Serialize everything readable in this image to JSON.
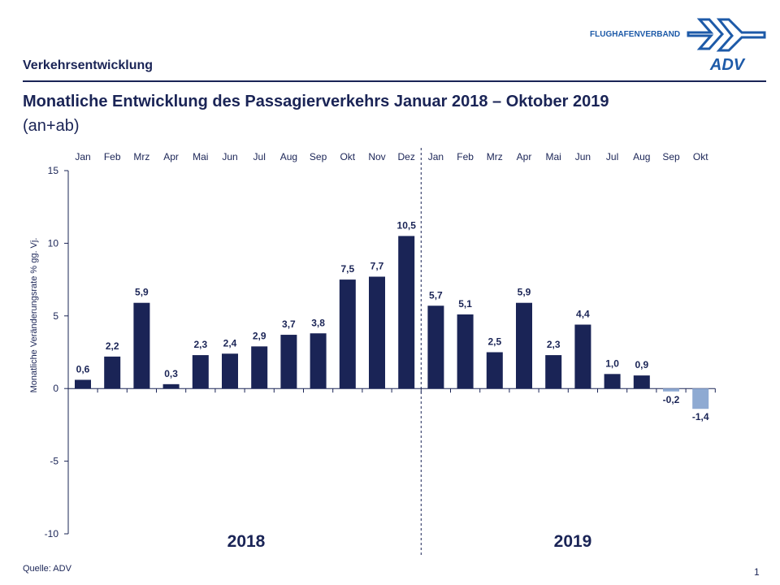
{
  "header": {
    "section_title": "Verkehrsentwicklung",
    "title": "Monatliche Entwicklung des Passagierverkehrs  Januar 2018 – Oktober 2019",
    "subtitle": "(an+ab)",
    "logo_text": "FLUGHAFENVERBAND",
    "logo_mark": "ADV"
  },
  "footer": {
    "source": "Quelle: ADV",
    "page_number": "1"
  },
  "chart_data": {
    "type": "bar",
    "title": "Monatliche Entwicklung des Passagierverkehrs  Januar 2018 – Oktober 2019",
    "ylabel": "Monatliche Veränderungsrate % gg. Vj.",
    "ylim": [
      -10,
      15
    ],
    "yticks": [
      "-10",
      "-5",
      "0",
      "5",
      "10",
      "15"
    ],
    "ytick_values": [
      -10,
      -5,
      0,
      5,
      10,
      15
    ],
    "grid": false,
    "categories": [
      "Jan",
      "Feb",
      "Mrz",
      "Apr",
      "Mai",
      "Jun",
      "Jul",
      "Aug",
      "Sep",
      "Okt",
      "Nov",
      "Dez",
      "Jan",
      "Feb",
      "Mrz",
      "Apr",
      "Mai",
      "Jun",
      "Jul",
      "Aug",
      "Sep",
      "Okt"
    ],
    "values": [
      0.6,
      2.2,
      5.9,
      0.3,
      2.3,
      2.4,
      2.9,
      3.7,
      3.8,
      7.5,
      7.7,
      10.5,
      5.7,
      5.1,
      2.5,
      5.9,
      2.3,
      4.4,
      1.0,
      0.9,
      -0.2,
      -1.4
    ],
    "data_labels": [
      "0,6",
      "2,2",
      "5,9",
      "0,3",
      "2,3",
      "2,4",
      "2,9",
      "3,7",
      "3,8",
      "7,5",
      "7,7",
      "10,5",
      "5,7",
      "5,1",
      "2,5",
      "5,9",
      "2,3",
      "4,4",
      "1,0",
      "0,9",
      "-0,2",
      "-1,4"
    ],
    "year_labels": [
      "2018",
      "2019"
    ],
    "colors": {
      "positive": "#1a2456",
      "negative": "#8eaad2",
      "axis": "#1a2456"
    }
  }
}
